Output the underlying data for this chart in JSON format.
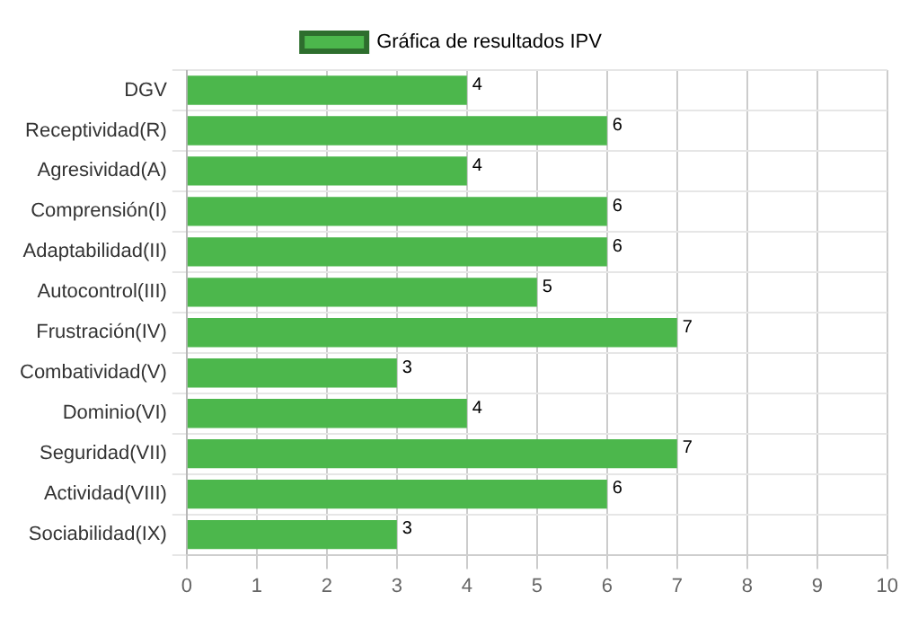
{
  "chart_data": {
    "type": "bar",
    "orientation": "horizontal",
    "categories": [
      "DGV",
      "Receptividad(R)",
      "Agresividad(A)",
      "Comprensión(I)",
      "Adaptabilidad(II)",
      "Autocontrol(III)",
      "Frustración(IV)",
      "Combatividad(V)",
      "Dominio(VI)",
      "Seguridad(VII)",
      "Actividad(VIII)",
      "Sociabilidad(IX)"
    ],
    "series": [
      {
        "name": "Gráfica de resultados IPV",
        "color": "#4cb74c",
        "values": [
          4,
          6,
          4,
          6,
          6,
          5,
          7,
          3,
          4,
          7,
          6,
          3
        ]
      }
    ],
    "xlim": [
      0,
      10
    ],
    "xticks": [
      0,
      1,
      2,
      3,
      4,
      5,
      6,
      7,
      8,
      9,
      10
    ],
    "grid": true,
    "legend": "top",
    "data_labels": true
  }
}
